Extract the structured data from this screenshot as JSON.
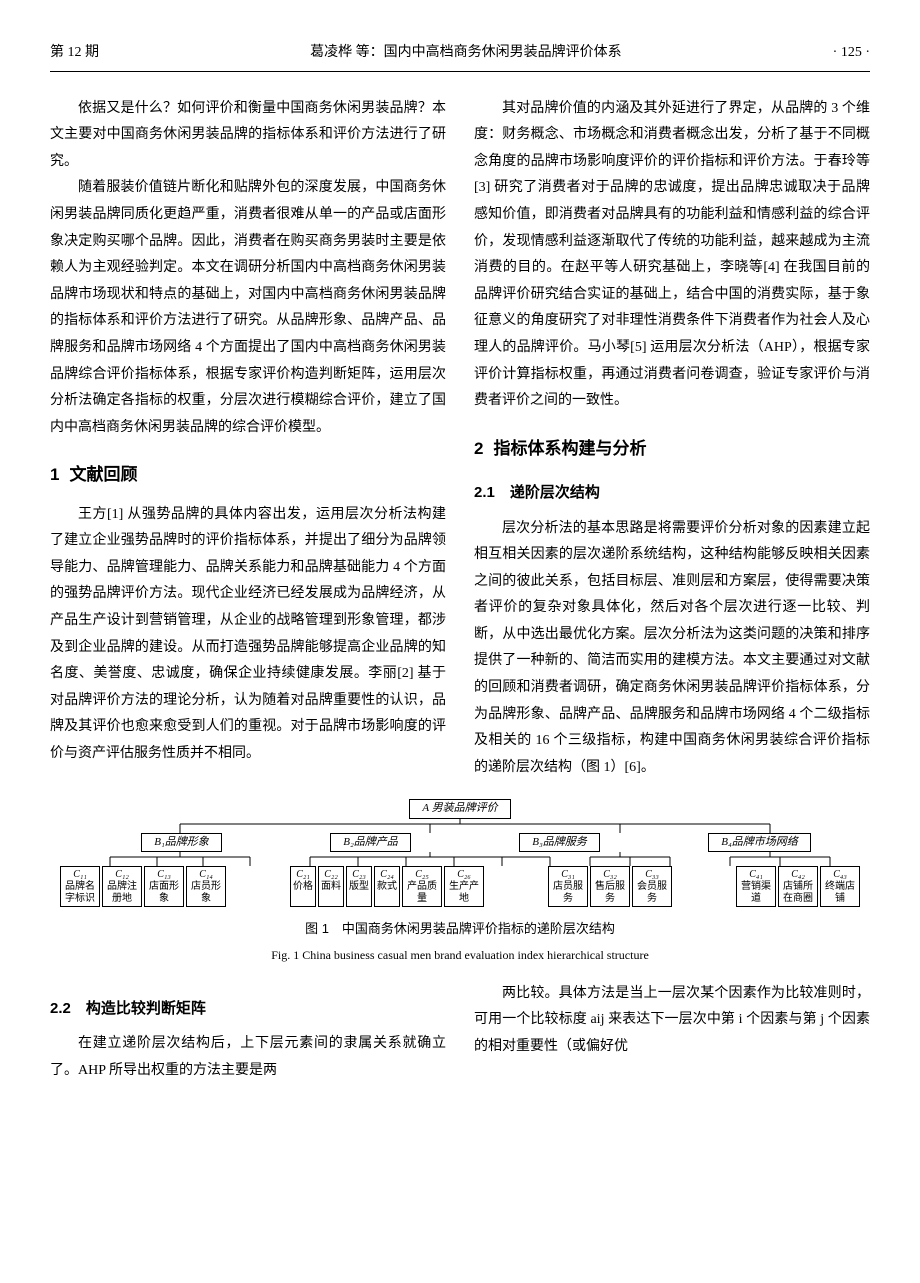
{
  "header": {
    "issue": "第 12 期",
    "running": "葛凌桦  等：国内中高档商务休闲男装品牌评价体系",
    "page": "· 125 ·"
  },
  "body": {
    "p1": "依据又是什么？如何评价和衡量中国商务休闲男装品牌？本文主要对中国商务休闲男装品牌的指标体系和评价方法进行了研究。",
    "p2": "随着服装价值链片断化和贴牌外包的深度发展，中国商务休闲男装品牌同质化更趋严重，消费者很难从单一的产品或店面形象决定购买哪个品牌。因此，消费者在购买商务男装时主要是依赖人为主观经验判定。本文在调研分析国内中高档商务休闲男装品牌市场现状和特点的基础上，对国内中高档商务休闲男装品牌的指标体系和评价方法进行了研究。从品牌形象、品牌产品、品牌服务和品牌市场网络 4 个方面提出了国内中高档商务休闲男装品牌综合评价指标体系，根据专家评价构造判断矩阵，运用层次分析法确定各指标的权重，分层次进行模糊综合评价，建立了国内中高档商务休闲男装品牌的综合评价模型。",
    "s1_title": "文献回顾",
    "p3": "王方[1] 从强势品牌的具体内容出发，运用层次分析法构建了建立企业强势品牌时的评价指标体系，并提出了细分为品牌领导能力、品牌管理能力、品牌关系能力和品牌基础能力 4 个方面的强势品牌评价方法。现代企业经济已经发展成为品牌经济，从产品生产设计到营销管理，从企业的战略管理到形象管理，都涉及到企业品牌的建设。从而打造强势品牌能够提高企业品牌的知名度、美誉度、忠诚度，确保企业持续健康发展。李丽[2] 基于对品牌评价方法的理论分析，认为随着对品牌重要性的认识，品牌及其评价也愈来愈受到人们的重视。对于品牌市场影响度的评价与资产评估服务性质并不相同。",
    "p4": "其对品牌价值的内涵及其外延进行了界定，从品牌的 3 个维度：财务概念、市场概念和消费者概念出发，分析了基于不同概念角度的品牌市场影响度评价的评价指标和评价方法。于春玲等[3] 研究了消费者对于品牌的忠诚度，提出品牌忠诚取决于品牌感知价值，即消费者对品牌具有的功能利益和情感利益的综合评价，发现情感利益逐渐取代了传统的功能利益，越来越成为主流消费的目的。在赵平等人研究基础上，李晓等[4] 在我国目前的品牌评价研究结合实证的基础上，结合中国的消费实际，基于象征意义的角度研究了对非理性消费条件下消费者作为社会人及心理人的品牌评价。马小琴[5] 运用层次分析法（AHP），根据专家评价计算指标权重，再通过消费者问卷调查，验证专家评价与消费者评价之间的一致性。",
    "s2_title": "指标体系构建与分析",
    "s2_1_title": "递阶层次结构",
    "p5": "层次分析法的基本思路是将需要评价分析对象的因素建立起相互相关因素的层次递阶系统结构，这种结构能够反映相关因素之间的彼此关系，包括目标层、准则层和方案层，使得需要决策者评价的复杂对象具体化，然后对各个层次进行逐一比较、判断，从中选出最优化方案。层次分析法为这类问题的决策和排序提供了一种新的、简洁而实用的建模方法。本文主要通过对文献的回顾和消费者调研，确定商务休闲男装品牌评价指标体系，分为品牌形象、品牌产品、品牌服务和品牌市场网络 4 个二级指标及相关的 16 个三级指标，构建中国商务休闲男装综合评价指标的递阶层次结构（图 1）[6]。",
    "s2_2_title": "构造比较判断矩阵",
    "p6": "在建立递阶层次结构后，上下层元素间的隶属关系就确立了。AHP 所导出权重的方法主要是两",
    "p7": "两比较。具体方法是当上一层次某个因素作为比较准则时，可用一个比较标度 aij 来表达下一层次中第 i 个因素与第 j 个因素的相对重要性（或偏好优"
  },
  "figure": {
    "caption_cn": "图 1　中国商务休闲男装品牌评价指标的递阶层次结构",
    "caption_en": "Fig. 1  China business casual men brand evaluation index hierarchical structure",
    "top": {
      "label": "A 男装品牌评价"
    },
    "level2": [
      {
        "label": "B₁品牌形象"
      },
      {
        "label": "B₂品牌产品"
      },
      {
        "label": "B₃品牌服务"
      },
      {
        "label": "B₄品牌市场网络"
      }
    ],
    "level3": [
      [
        {
          "c": "C₁₁",
          "label": "品牌名字标识"
        },
        {
          "c": "C₁₂",
          "label": "品牌注册地"
        },
        {
          "c": "C₁₃",
          "label": "店面形象"
        },
        {
          "c": "C₁₄",
          "label": "店员形象"
        }
      ],
      [
        {
          "c": "C₂₁",
          "label": "价格"
        },
        {
          "c": "C₂₂",
          "label": "面料"
        },
        {
          "c": "C₂₃",
          "label": "版型"
        },
        {
          "c": "C₂₄",
          "label": "款式"
        },
        {
          "c": "C₂₅",
          "label": "产品质量"
        },
        {
          "c": "C₂₆",
          "label": "生产产地"
        }
      ],
      [
        {
          "c": "C₃₁",
          "label": "店员服务"
        },
        {
          "c": "C₃₂",
          "label": "售后服务"
        },
        {
          "c": "C₃₃",
          "label": "会员服务"
        }
      ],
      [
        {
          "c": "C₄₁",
          "label": "营销渠道"
        },
        {
          "c": "C₄₂",
          "label": "店铺所在商圈"
        },
        {
          "c": "C₄₃",
          "label": "终端店铺"
        }
      ]
    ],
    "style": {
      "node_border": "#000000",
      "node_bg": "#ffffff",
      "line_color": "#000000",
      "line_width": 1,
      "top_font_style": "italic",
      "leaf_font_size": 10,
      "mid_font_size": 11
    }
  }
}
